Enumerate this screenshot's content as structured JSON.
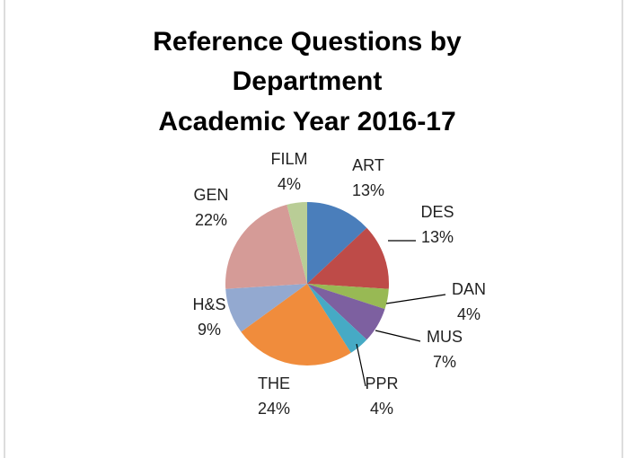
{
  "chart_data": {
    "type": "pie",
    "title": [
      "Reference Questions by",
      "Department",
      "Academic Year 2016-17"
    ],
    "categories": [
      "ART",
      "DES",
      "DAN",
      "MUS",
      "PPR",
      "THE",
      "H&S",
      "GEN",
      "FILM"
    ],
    "values": [
      13,
      13,
      4,
      7,
      4,
      24,
      9,
      22,
      4
    ],
    "value_labels": [
      "13%",
      "13%",
      "4%",
      "7%",
      "4%",
      "24%",
      "9%",
      "22%",
      "4%"
    ],
    "colors": [
      "#4a7ebb",
      "#be4b48",
      "#98b954",
      "#7d60a0",
      "#46aac5",
      "#f08c3c",
      "#93a9d0",
      "#d59b97",
      "#b9cd96"
    ]
  }
}
